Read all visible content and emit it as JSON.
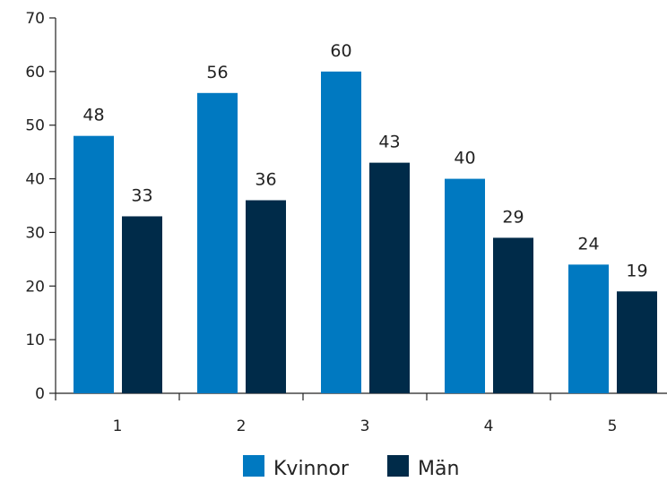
{
  "chart_data": {
    "type": "bar",
    "categories": [
      "1",
      "2",
      "3",
      "4",
      "5"
    ],
    "series": [
      {
        "name": "Kvinnor",
        "color": "#0079C1",
        "values": [
          48,
          56,
          60,
          40,
          24
        ]
      },
      {
        "name": "Män",
        "color": "#002B49",
        "values": [
          33,
          36,
          43,
          29,
          19
        ]
      }
    ],
    "title": "",
    "xlabel": "",
    "ylabel": "",
    "ylim": [
      0,
      70
    ],
    "yticks": [
      0,
      10,
      20,
      30,
      40,
      50,
      60,
      70
    ],
    "grid": false,
    "legend": {
      "position": "bottom-center"
    },
    "data_labels": true
  }
}
